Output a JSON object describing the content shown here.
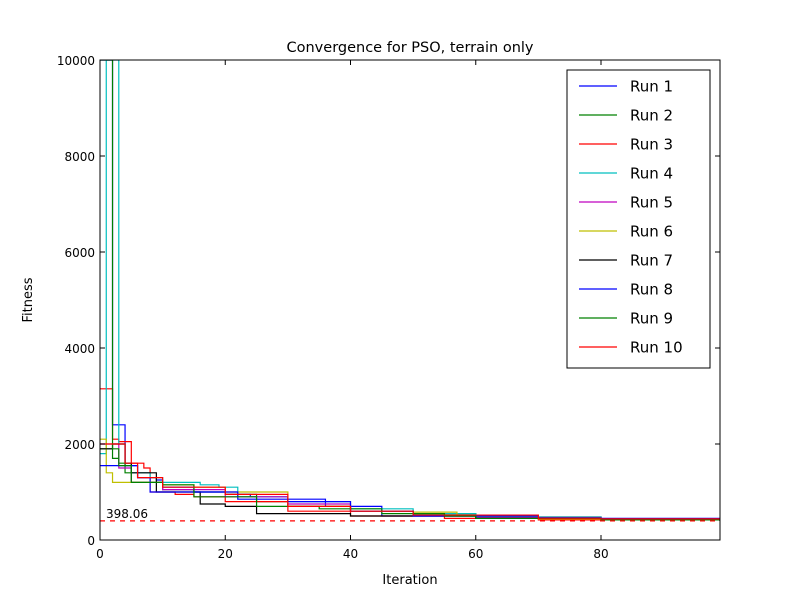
{
  "chart_data": {
    "type": "line",
    "title": "Convergence for PSO, terrain only",
    "xlabel": "Iteration",
    "ylabel": "Fitness",
    "xlim": [
      0,
      99
    ],
    "ylim": [
      0,
      10000
    ],
    "xticks": [
      0,
      20,
      40,
      60,
      80
    ],
    "yticks": [
      0,
      2000,
      4000,
      6000,
      8000,
      10000
    ],
    "grid": false,
    "legend_position": "top-right",
    "reference_line": {
      "value": 398.06,
      "label": "398.06",
      "color": "#ff0000",
      "style": "dashed"
    },
    "series": [
      {
        "name": "Run 1",
        "color": "#0000ff",
        "x": [
          0,
          1,
          2,
          3,
          4,
          5,
          6,
          9,
          10,
          15,
          20,
          24,
          30,
          36,
          45,
          60,
          80,
          99
        ],
        "y": [
          10000,
          10000,
          2400,
          2400,
          1550,
          1550,
          1300,
          1250,
          1100,
          1000,
          950,
          900,
          850,
          700,
          500,
          450,
          420,
          398
        ]
      },
      {
        "name": "Run 2",
        "color": "#008000",
        "x": [
          0,
          1,
          2,
          3,
          4,
          5,
          10,
          15,
          20,
          25,
          30,
          40,
          50,
          60,
          80,
          99
        ],
        "y": [
          1900,
          1900,
          1700,
          1600,
          1400,
          1200,
          1050,
          1000,
          950,
          800,
          700,
          600,
          550,
          480,
          430,
          400
        ]
      },
      {
        "name": "Run 3",
        "color": "#ff0000",
        "x": [
          0,
          1,
          2,
          3,
          5,
          7,
          8,
          12,
          15,
          20,
          30,
          40,
          55,
          70,
          99
        ],
        "y": [
          3150,
          3150,
          2100,
          2050,
          1600,
          1500,
          1000,
          950,
          900,
          800,
          600,
          500,
          450,
          420,
          400
        ]
      },
      {
        "name": "Run 4",
        "color": "#00bfbf",
        "x": [
          0,
          1,
          2,
          3,
          4,
          5,
          8,
          10,
          16,
          19,
          22,
          30,
          40,
          50,
          60,
          80,
          99
        ],
        "y": [
          1800,
          10000,
          10000,
          2000,
          1600,
          1400,
          1300,
          1200,
          1150,
          1100,
          900,
          800,
          650,
          550,
          480,
          430,
          400
        ]
      },
      {
        "name": "Run 5",
        "color": "#bf00bf",
        "x": [
          0,
          1,
          3,
          5,
          10,
          20,
          30,
          40,
          50,
          60,
          80,
          99
        ],
        "y": [
          2000,
          2000,
          1500,
          1200,
          1050,
          900,
          750,
          600,
          520,
          470,
          430,
          400
        ]
      },
      {
        "name": "Run 6",
        "color": "#bfbf00",
        "x": [
          0,
          1,
          2,
          4,
          10,
          15,
          20,
          30,
          40,
          50,
          55,
          57,
          70,
          99
        ],
        "y": [
          2100,
          1400,
          1200,
          1200,
          1150,
          1100,
          1000,
          700,
          600,
          580,
          580,
          500,
          430,
          400
        ]
      },
      {
        "name": "Run 7",
        "color": "#000000",
        "x": [
          0,
          1,
          2,
          4,
          5,
          8,
          9,
          16,
          20,
          25,
          30,
          40,
          60,
          80,
          99
        ],
        "y": [
          1900,
          1900,
          2000,
          1600,
          1400,
          1400,
          1000,
          750,
          700,
          550,
          550,
          500,
          450,
          420,
          398
        ]
      },
      {
        "name": "Run 8",
        "color": "#0000ff",
        "x": [
          0,
          1,
          5,
          6,
          8,
          16,
          22,
          30,
          40,
          50,
          70,
          99
        ],
        "y": [
          1550,
          1550,
          1550,
          1300,
          1000,
          1000,
          850,
          800,
          600,
          500,
          450,
          400
        ]
      },
      {
        "name": "Run 9",
        "color": "#008000",
        "x": [
          0,
          1,
          2,
          3,
          5,
          10,
          15,
          25,
          35,
          45,
          55,
          60,
          80,
          99
        ],
        "y": [
          10000,
          10000,
          1900,
          1550,
          1200,
          1150,
          900,
          700,
          650,
          550,
          500,
          450,
          420,
          400
        ]
      },
      {
        "name": "Run 10",
        "color": "#ff0000",
        "x": [
          0,
          1,
          2,
          4,
          6,
          10,
          20,
          30,
          40,
          50,
          70,
          99
        ],
        "y": [
          2000,
          2000,
          2000,
          1600,
          1300,
          1100,
          950,
          700,
          600,
          520,
          440,
          398
        ]
      }
    ]
  }
}
